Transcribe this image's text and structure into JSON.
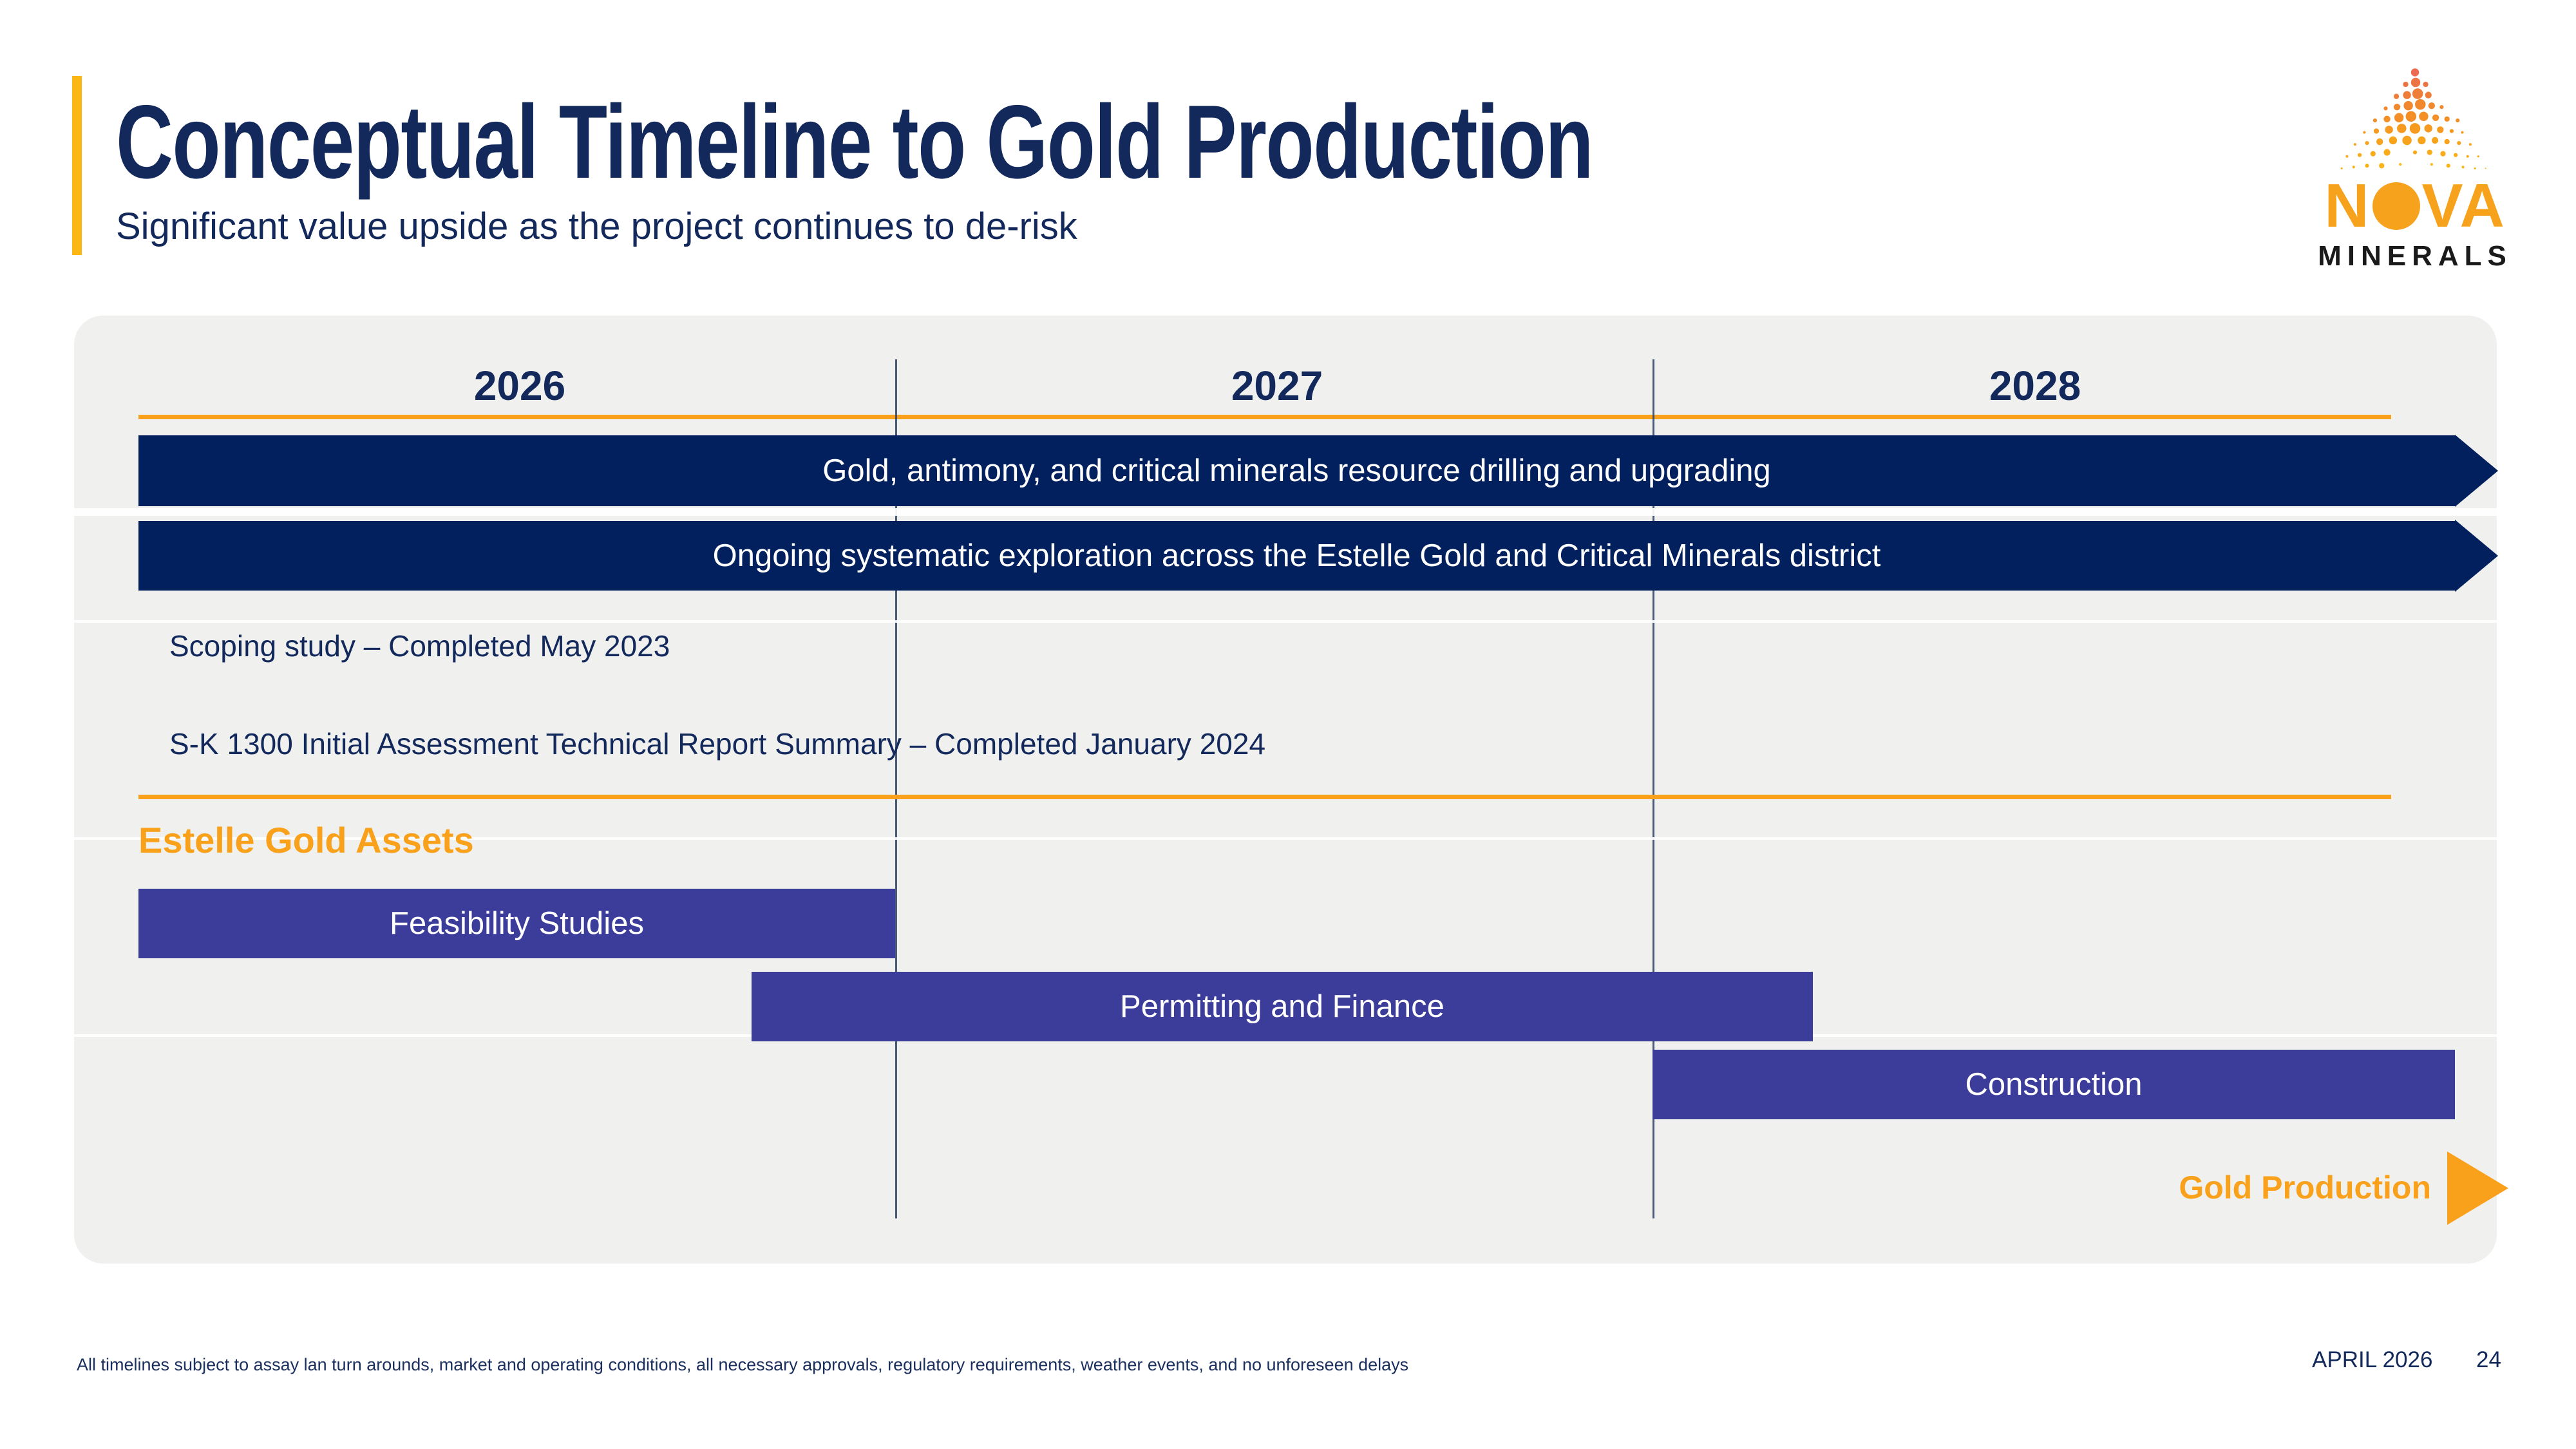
{
  "slide": {
    "title": "Conceptual Timeline to Gold Production",
    "subtitle": "Significant value upside as the project continues to de-risk",
    "footnote": "All timelines subject to assay lan turn arounds, market and operating conditions, all necessary approvals, regulatory requirements, weather events, and no unforeseen delays",
    "date": "APRIL 2026",
    "page_number": "24"
  },
  "logo": {
    "brand": "NOVA",
    "brand_n": "N",
    "brand_va": "VA",
    "subbrand": "MINERALS"
  },
  "colors": {
    "navy_bar": "#02205E",
    "purple_bar": "#3C3C9B",
    "orange": "#F9A11B",
    "accent_gold": "#FDB714",
    "panel_bg": "#F0F0EF",
    "text_navy": "#13295B",
    "logo_orange": "#F6A21C",
    "white": "#FFFFFF"
  },
  "chart_data": {
    "type": "gantt",
    "title": "Conceptual Timeline to Gold Production",
    "years": [
      "2026",
      "2027",
      "2028"
    ],
    "axis": {
      "start_year": 2026,
      "end_year": 2029,
      "gridlines": true,
      "year_dividers_between_columns": true
    },
    "tasks": [
      {
        "label": "Gold, antimony, and critical minerals resource drilling and upgrading",
        "start": 2026.0,
        "end": 2029.0,
        "arrow": true,
        "color_key": "navy_bar",
        "group": null
      },
      {
        "label": "Ongoing systematic exploration across the Estelle Gold and Critical Minerals district",
        "start": 2026.0,
        "end": 2029.0,
        "arrow": true,
        "color_key": "navy_bar",
        "group": null
      },
      {
        "label": "Feasibility Studies",
        "start": 2026.0,
        "end": 2027.0,
        "arrow": false,
        "color_key": "purple_bar",
        "group": "Estelle Gold Assets"
      },
      {
        "label": "Permitting and Finance",
        "start": 2026.81,
        "end": 2028.2,
        "arrow": false,
        "color_key": "purple_bar",
        "group": "Estelle Gold Assets"
      },
      {
        "label": "Construction",
        "start": 2028.0,
        "end": 2029.0,
        "arrow": false,
        "color_key": "purple_bar",
        "group": "Estelle Gold Assets"
      }
    ],
    "milestones": [
      {
        "label": "Scoping study – Completed May 2023"
      },
      {
        "label": "S-K 1300 Initial Assessment Technical Report Summary – Completed January 2024"
      }
    ],
    "group_heading": "Estelle Gold Assets",
    "end_label": "Gold Production",
    "legend_position": "none"
  }
}
